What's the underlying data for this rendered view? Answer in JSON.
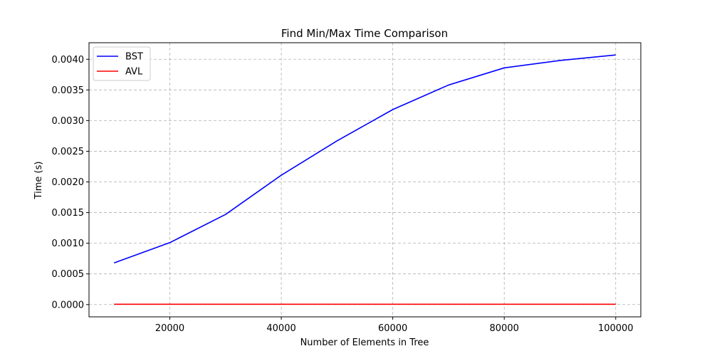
{
  "chart_data": {
    "type": "line",
    "title": "Find Min/Max Time Comparison",
    "xlabel": "Number of Elements in Tree",
    "ylabel": "Time (s)",
    "xlim": [
      5500,
      104500
    ],
    "ylim": [
      -0.0002,
      0.00427
    ],
    "x_ticks": [
      20000,
      40000,
      60000,
      80000,
      100000
    ],
    "y_ticks": [
      0.0,
      0.0005,
      0.001,
      0.0015,
      0.002,
      0.0025,
      0.003,
      0.0035,
      0.004
    ],
    "x_tick_labels": [
      "20000",
      "40000",
      "60000",
      "80000",
      "100000"
    ],
    "y_tick_labels": [
      "0.0000",
      "0.0005",
      "0.0010",
      "0.0015",
      "0.0020",
      "0.0025",
      "0.0030",
      "0.0035",
      "0.0040"
    ],
    "grid": true,
    "legend_position": "top-left",
    "x": [
      10000,
      20000,
      30000,
      40000,
      50000,
      60000,
      70000,
      80000,
      90000,
      100000
    ],
    "series": [
      {
        "name": "BST",
        "color": "#0000ff",
        "values": [
          0.00068,
          0.00101,
          0.00147,
          0.00211,
          0.00267,
          0.00318,
          0.00358,
          0.00386,
          0.00398,
          0.00407
        ]
      },
      {
        "name": "AVL",
        "color": "#ff0000",
        "values": [
          5e-06,
          5e-06,
          5e-06,
          5e-06,
          5e-06,
          5e-06,
          5e-06,
          5e-06,
          5e-06,
          5e-06
        ]
      }
    ]
  }
}
